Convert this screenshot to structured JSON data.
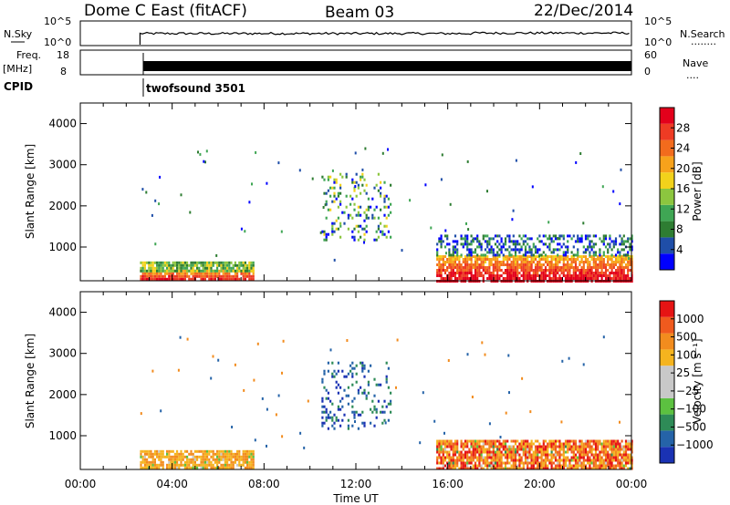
{
  "header": {
    "title": "Dome C East (fitACF)",
    "beam": "Beam 03",
    "date": "22/Dec/2014"
  },
  "nsky_panel": {
    "left_label": "N.Sky",
    "left_ticks": [
      "10^5",
      "10^0"
    ],
    "right_ticks": [
      "10^5",
      "10^0"
    ],
    "right_label": "N.Search",
    "right_label_dots": "........"
  },
  "freq_panel": {
    "left_label_1": "Freq.",
    "left_label_2": "[MHz]",
    "left_ticks": [
      "18",
      "8"
    ],
    "right_ticks": [
      "60",
      "0"
    ],
    "right_label": "Nave",
    "right_label_dots": "...."
  },
  "cpid_panel": {
    "label": "CPID",
    "program": "twofsound 3501"
  },
  "colors": {
    "power_scale": [
      "#0000ff",
      "#1f4ea8",
      "#2e7d32",
      "#3fa654",
      "#8cc63f",
      "#f2d21b",
      "#f7a21b",
      "#f26b1d",
      "#ee3b24",
      "#e3001b"
    ],
    "velocity_scale": [
      "#1a32b3",
      "#2563a8",
      "#2e8b57",
      "#5cc140",
      "#c8c8c8",
      "#c8c8c8",
      "#f5b41e",
      "#f28c1e",
      "#f05a1e",
      "#e61414"
    ]
  },
  "chart_data": [
    {
      "type": "heatmap",
      "name_hint": "power",
      "xlabel": "",
      "ylabel": "Slant Range [km]",
      "yticks": [
        "1000",
        "2000",
        "3000",
        "4000"
      ],
      "ylim": [
        180,
        4500
      ],
      "xlim_hours": [
        0,
        24
      ],
      "colorbar": {
        "label": "Power [dB]",
        "ticks": [
          "4",
          "8",
          "12",
          "16",
          "20",
          "24",
          "28"
        ],
        "range": [
          0,
          30
        ]
      },
      "series": [
        {
          "x_start_h": 2.6,
          "x_end_h": 7.5,
          "y_min": 200,
          "y_max": 450,
          "level": "high"
        },
        {
          "x_start_h": 2.6,
          "x_end_h": 7.5,
          "y_min": 450,
          "y_max": 650,
          "level": "mid"
        },
        {
          "x_start_h": 10.5,
          "x_end_h": 13.5,
          "y_min": 1200,
          "y_max": 2800,
          "level": "patchy"
        },
        {
          "x_start_h": 15.5,
          "x_end_h": 24.0,
          "y_min": 200,
          "y_max": 800,
          "level": "high"
        },
        {
          "x_start_h": 15.5,
          "x_end_h": 24.0,
          "y_min": 800,
          "y_max": 1300,
          "level": "low"
        }
      ]
    },
    {
      "type": "heatmap",
      "name_hint": "velocity",
      "xlabel": "Time UT",
      "ylabel": "Slant Range [km]",
      "xticks": [
        "00:00",
        "04:00",
        "08:00",
        "12:00",
        "16:00",
        "20:00",
        "00:00"
      ],
      "yticks": [
        "1000",
        "2000",
        "3000",
        "4000"
      ],
      "ylim": [
        180,
        4500
      ],
      "xlim_hours": [
        0,
        24
      ],
      "colorbar": {
        "label": "Velocity [m s⁻¹]",
        "ticks": [
          "1000",
          "500",
          "100",
          "25",
          "−25",
          "−100",
          "−500",
          "−1000"
        ],
        "range": [
          -1200,
          1200
        ]
      },
      "series": [
        {
          "x_start_h": 2.6,
          "x_end_h": 7.5,
          "y_min": 200,
          "y_max": 650,
          "level": "orange"
        },
        {
          "x_start_h": 10.5,
          "x_end_h": 13.5,
          "y_min": 1200,
          "y_max": 2800,
          "level": "blue-patchy"
        },
        {
          "x_start_h": 15.5,
          "x_end_h": 24.0,
          "y_min": 200,
          "y_max": 900,
          "level": "orange-red"
        }
      ]
    }
  ]
}
